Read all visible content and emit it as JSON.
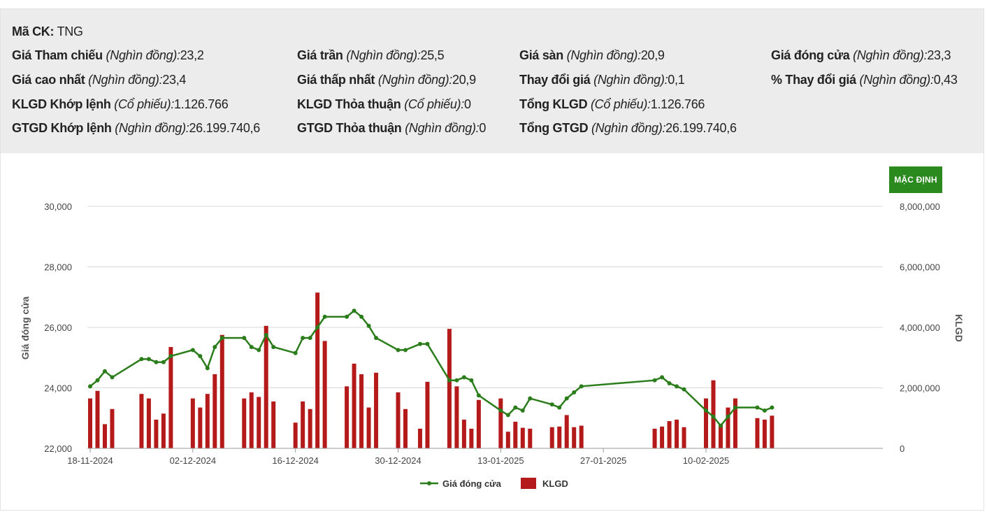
{
  "info": {
    "ma_ck": {
      "label": "Mã CK:",
      "value": "TNG"
    },
    "rows": [
      [
        {
          "label": "Giá Tham chiếu",
          "unit": "(Nghìn đồng):",
          "value": "23,2"
        },
        {
          "label": "Giá trần",
          "unit": "(Nghìn đồng):",
          "value": "25,5"
        },
        {
          "label": "Giá sàn",
          "unit": "(Nghìn đồng):",
          "value": "20,9"
        },
        {
          "label": "Giá đóng cửa",
          "unit": "(Nghìn đồng):",
          "value": "23,3"
        }
      ],
      [
        {
          "label": "Giá cao nhất",
          "unit": "(Nghìn đồng):",
          "value": "23,4"
        },
        {
          "label": "Giá thấp nhất",
          "unit": "(Nghìn đồng):",
          "value": "20,9"
        },
        {
          "label": "Thay đổi giá",
          "unit": "(Nghìn đồng):",
          "value": "0,1"
        },
        {
          "label": "% Thay đổi giá",
          "unit": "(Nghìn đồng):",
          "value": "0,43"
        }
      ],
      [
        {
          "label": "KLGD Khớp lệnh",
          "unit": "(Cổ phiếu):",
          "value": "1.126.766"
        },
        {
          "label": "KLGD Thỏa thuận",
          "unit": "(Cổ phiếu):",
          "value": "0"
        },
        {
          "label": "Tổng KLGD",
          "unit": "(Cổ phiếu):",
          "value": "1.126.766"
        }
      ],
      [
        {
          "label": "GTGD Khớp lệnh",
          "unit": "(Nghìn đồng):",
          "value": "26.199.740,6"
        },
        {
          "label": "GTGD Thỏa thuận",
          "unit": "(Nghìn đồng):",
          "value": "0"
        },
        {
          "label": "Tổng GTGD",
          "unit": "(Nghìn đồng):",
          "value": "26.199.740,6"
        }
      ]
    ]
  },
  "default_button": "MẶC ĐỊNH",
  "chart_data": {
    "type": "line+bar",
    "y_left_label": "Giá đóng cửa",
    "y_right_label": "KLGD",
    "y_left_range": [
      22000,
      30000
    ],
    "y_left_ticks": [
      "30,000",
      "28,000",
      "26,000",
      "24,000",
      "22,000"
    ],
    "y_right_range": [
      0,
      8000000
    ],
    "y_right_ticks": [
      "8,000,000",
      "6,000,000",
      "4,000,000",
      "2,000,000",
      "0"
    ],
    "x_ticks": [
      "18-11-2024",
      "02-12-2024",
      "16-12-2024",
      "30-12-2024",
      "13-01-2025",
      "27-01-2025",
      "10-02-2025"
    ],
    "legend": [
      {
        "name": "Giá đóng cửa",
        "color": "#2a7d1a"
      },
      {
        "name": "KLGD",
        "color": "#b51a1a"
      }
    ],
    "line_color": "#2a7d1a",
    "bar_color": "#b51a1a",
    "grid": true,
    "series": [
      {
        "date": "2024-11-18",
        "close": 24050,
        "volume": 1650000
      },
      {
        "date": "2024-11-19",
        "close": 24250,
        "volume": 1900000
      },
      {
        "date": "2024-11-20",
        "close": 24550,
        "volume": 800000
      },
      {
        "date": "2024-11-21",
        "close": 24350,
        "volume": 1300000
      },
      {
        "date": "2024-11-25",
        "close": 24950,
        "volume": 1800000
      },
      {
        "date": "2024-11-26",
        "close": 24950,
        "volume": 1650000
      },
      {
        "date": "2024-11-27",
        "close": 24850,
        "volume": 950000
      },
      {
        "date": "2024-11-28",
        "close": 24850,
        "volume": 1150000
      },
      {
        "date": "2024-11-29",
        "close": 25050,
        "volume": 3350000
      },
      {
        "date": "2024-12-02",
        "close": 25250,
        "volume": 1650000
      },
      {
        "date": "2024-12-03",
        "close": 25050,
        "volume": 1350000
      },
      {
        "date": "2024-12-04",
        "close": 24650,
        "volume": 1800000
      },
      {
        "date": "2024-12-05",
        "close": 25350,
        "volume": 2450000
      },
      {
        "date": "2024-12-06",
        "close": 25650,
        "volume": 3750000
      },
      {
        "date": "2024-12-09",
        "close": 25650,
        "volume": 1650000
      },
      {
        "date": "2024-12-10",
        "close": 25350,
        "volume": 1850000
      },
      {
        "date": "2024-12-11",
        "close": 25250,
        "volume": 1700000
      },
      {
        "date": "2024-12-12",
        "close": 25750,
        "volume": 4050000
      },
      {
        "date": "2024-12-13",
        "close": 25350,
        "volume": 1550000
      },
      {
        "date": "2024-12-16",
        "close": 25150,
        "volume": 850000
      },
      {
        "date": "2024-12-17",
        "close": 25650,
        "volume": 1550000
      },
      {
        "date": "2024-12-18",
        "close": 25650,
        "volume": 1300000
      },
      {
        "date": "2024-12-19",
        "close": 26000,
        "volume": 5150000
      },
      {
        "date": "2024-12-20",
        "close": 26350,
        "volume": 3550000
      },
      {
        "date": "2024-12-23",
        "close": 26350,
        "volume": 2050000
      },
      {
        "date": "2024-12-24",
        "close": 26550,
        "volume": 2800000
      },
      {
        "date": "2024-12-25",
        "close": 26350,
        "volume": 2450000
      },
      {
        "date": "2024-12-26",
        "close": 26050,
        "volume": 1350000
      },
      {
        "date": "2024-12-27",
        "close": 25650,
        "volume": 2500000
      },
      {
        "date": "2024-12-30",
        "close": 25250,
        "volume": 1850000
      },
      {
        "date": "2024-12-31",
        "close": 25250,
        "volume": 1300000
      },
      {
        "date": "2025-01-02",
        "close": 25450,
        "volume": 650000
      },
      {
        "date": "2025-01-03",
        "close": 25450,
        "volume": 2200000
      },
      {
        "date": "2025-01-06",
        "close": 24250,
        "volume": 3950000
      },
      {
        "date": "2025-01-07",
        "close": 24250,
        "volume": 2050000
      },
      {
        "date": "2025-01-08",
        "close": 24350,
        "volume": 950000
      },
      {
        "date": "2025-01-09",
        "close": 24250,
        "volume": 650000
      },
      {
        "date": "2025-01-10",
        "close": 23750,
        "volume": 1600000
      },
      {
        "date": "2025-01-13",
        "close": 23250,
        "volume": 1650000
      },
      {
        "date": "2025-01-14",
        "close": 23100,
        "volume": 550000
      },
      {
        "date": "2025-01-15",
        "close": 23350,
        "volume": 880000
      },
      {
        "date": "2025-01-16",
        "close": 23250,
        "volume": 680000
      },
      {
        "date": "2025-01-17",
        "close": 23650,
        "volume": 650000
      },
      {
        "date": "2025-01-20",
        "close": 23450,
        "volume": 700000
      },
      {
        "date": "2025-01-21",
        "close": 23350,
        "volume": 720000
      },
      {
        "date": "2025-01-22",
        "close": 23650,
        "volume": 1100000
      },
      {
        "date": "2025-01-23",
        "close": 23850,
        "volume": 700000
      },
      {
        "date": "2025-01-24",
        "close": 24050,
        "volume": 750000
      },
      {
        "date": "2025-02-03",
        "close": 24250,
        "volume": 650000
      },
      {
        "date": "2025-02-04",
        "close": 24350,
        "volume": 720000
      },
      {
        "date": "2025-02-05",
        "close": 24150,
        "volume": 900000
      },
      {
        "date": "2025-02-06",
        "close": 24050,
        "volume": 950000
      },
      {
        "date": "2025-02-07",
        "close": 23950,
        "volume": 700000
      },
      {
        "date": "2025-02-10",
        "close": 23250,
        "volume": 1650000
      },
      {
        "date": "2025-02-11",
        "close": 23050,
        "volume": 2250000
      },
      {
        "date": "2025-02-12",
        "close": 22750,
        "volume": 800000
      },
      {
        "date": "2025-02-13",
        "close": 23050,
        "volume": 1350000
      },
      {
        "date": "2025-02-14",
        "close": 23350,
        "volume": 1650000
      },
      {
        "date": "2025-02-17",
        "close": 23350,
        "volume": 1000000
      },
      {
        "date": "2025-02-18",
        "close": 23250,
        "volume": 950000
      },
      {
        "date": "2025-02-19",
        "close": 23350,
        "volume": 1080000
      }
    ]
  }
}
